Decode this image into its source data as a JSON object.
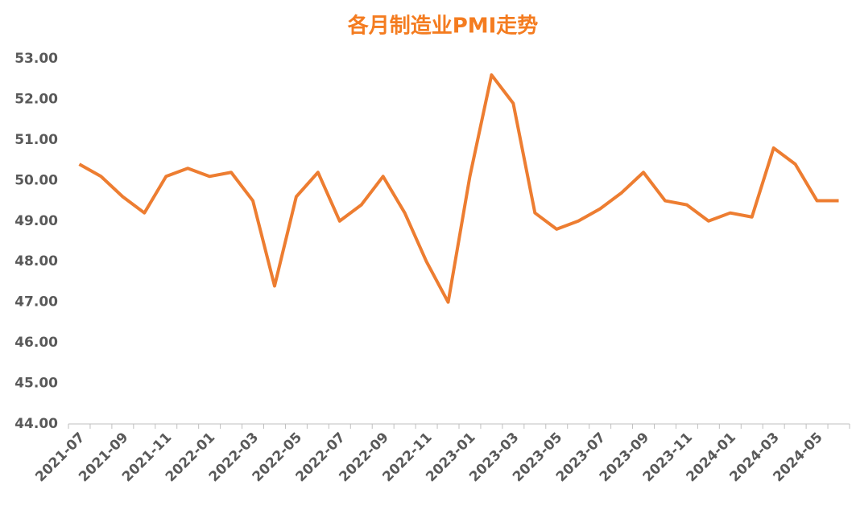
{
  "chart_data": {
    "type": "line",
    "title": "各月制造业PMI走势",
    "categories": [
      "2021-07",
      null,
      "2021-09",
      null,
      "2021-11",
      null,
      "2022-01",
      null,
      "2022-03",
      null,
      "2022-05",
      null,
      "2022-07",
      null,
      "2022-09",
      null,
      "2022-11",
      null,
      "2023-01",
      null,
      "2023-03",
      null,
      "2023-05",
      null,
      "2023-07",
      null,
      "2023-09",
      null,
      "2023-11",
      null,
      "2024-01",
      null,
      "2024-03",
      null,
      "2024-05",
      null
    ],
    "series": [
      {
        "name": "PMI",
        "color": "#ED7D31",
        "values": [
          50.4,
          50.1,
          49.6,
          49.2,
          50.1,
          50.3,
          50.1,
          50.2,
          49.5,
          47.4,
          49.6,
          50.2,
          49.0,
          49.4,
          50.1,
          49.2,
          48.0,
          47.0,
          50.1,
          52.6,
          51.9,
          49.2,
          48.8,
          49.0,
          49.3,
          49.7,
          50.2,
          49.5,
          49.4,
          49.0,
          49.2,
          49.1,
          50.8,
          50.4,
          49.5,
          49.5
        ]
      }
    ],
    "ylim": [
      44,
      53
    ],
    "yticks": [
      {
        "value": 44,
        "label": "44.00"
      },
      {
        "value": 45,
        "label": "45.00"
      },
      {
        "value": 46,
        "label": "46.00"
      },
      {
        "value": 47,
        "label": "47.00"
      },
      {
        "value": 48,
        "label": "48.00"
      },
      {
        "value": 49,
        "label": "49.00"
      },
      {
        "value": 50,
        "label": "50.00"
      },
      {
        "value": 51,
        "label": "51.00"
      },
      {
        "value": 52,
        "label": "52.00"
      },
      {
        "value": 53,
        "label": "53.00"
      }
    ],
    "grid": false
  }
}
